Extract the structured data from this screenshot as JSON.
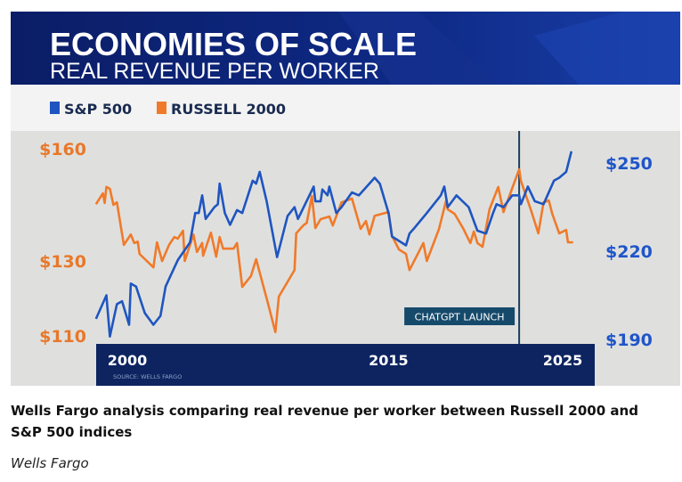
{
  "chart_data": {
    "type": "line",
    "title": "ECONOMIES OF SCALE",
    "subtitle": "REAL REVENUE PER WORKER",
    "source": "SOURCE: WELLS FARGO",
    "x_tick_labels": [
      "2000",
      "2015",
      "2025"
    ],
    "x_ticks": [
      2000,
      2015,
      2025
    ],
    "xlim": [
      1998.2,
      2025.6
    ],
    "left_axis": {
      "tick_labels": [
        "$160",
        "$130",
        "$110"
      ],
      "ticks": [
        160,
        130,
        110
      ],
      "color": "#e8782b",
      "series": "RUSSELL 2000"
    },
    "right_axis": {
      "tick_labels": [
        "$250",
        "$220",
        "$190"
      ],
      "ticks": [
        250,
        220,
        190
      ],
      "color": "#1f55c9",
      "series": "S&P 500"
    },
    "grid": false,
    "legend_position": "top-left",
    "annotation": {
      "label": "CHATGPT LAUNCH",
      "x": 2022.5
    },
    "series": [
      {
        "name": "S&P 500",
        "axis": "right",
        "color": "#1f55c0",
        "x": [
          1998.2,
          1998.8,
          1999.0,
          1999.4,
          1999.7,
          2000.1,
          2000.2,
          2000.5,
          2001.0,
          2001.5,
          2001.9,
          2002.2,
          2002.9,
          2003.6,
          2003.9,
          2004.1,
          2004.3,
          2004.5,
          2005.0,
          2005.2,
          2005.3,
          2005.6,
          2005.9,
          2006.3,
          2006.6,
          2007.2,
          2007.4,
          2007.6,
          2008.0,
          2008.6,
          2009.2,
          2009.6,
          2009.8,
          2010.7,
          2010.8,
          2011.1,
          2011.2,
          2011.5,
          2011.6,
          2012.0,
          2012.3,
          2012.9,
          2013.3,
          2014.2,
          2014.5,
          2015.0,
          2015.2,
          2016.0,
          2016.2,
          2016.5,
          2017.2,
          2018.0,
          2018.2,
          2018.4,
          2018.9,
          2019.6,
          2020.1,
          2020.6,
          2021.0,
          2021.2,
          2021.6,
          2022.1,
          2022.5,
          2022.6,
          2023.0,
          2023.4,
          2023.9,
          2024.5,
          2024.8,
          2025.2,
          2025.5
        ],
        "y": [
          197,
          205,
          191,
          202,
          203,
          195,
          209,
          208,
          199,
          195,
          198,
          208,
          217,
          223,
          233,
          233,
          239,
          231,
          235,
          236,
          243,
          233,
          229,
          234,
          233,
          244,
          243,
          247,
          237,
          218,
          232,
          235,
          231,
          242,
          237,
          237,
          241,
          239,
          242,
          233,
          235,
          240,
          239,
          245,
          243,
          233,
          225,
          222,
          226,
          228,
          233,
          239,
          242,
          235,
          239,
          235,
          227,
          226,
          233,
          236,
          235,
          239,
          239,
          236,
          242,
          237,
          236,
          244,
          245,
          247,
          254
        ]
      },
      {
        "name": "RUSSELL 2000",
        "axis": "left",
        "color": "#f07a2a",
        "x": [
          1998.2,
          1998.6,
          1998.7,
          1998.8,
          1999.0,
          1999.2,
          1999.4,
          1999.8,
          2000.2,
          2000.4,
          2000.6,
          2000.7,
          2001.5,
          2001.7,
          2002.0,
          2002.4,
          2002.7,
          2002.9,
          2003.2,
          2003.3,
          2003.8,
          2004.0,
          2004.3,
          2004.35,
          2004.8,
          2005.1,
          2005.3,
          2005.5,
          2006.1,
          2006.3,
          2006.6,
          2007.1,
          2007.4,
          2008.1,
          2008.5,
          2008.7,
          2009.6,
          2009.7,
          2010.1,
          2010.3,
          2010.6,
          2010.8,
          2011.1,
          2011.6,
          2011.8,
          2012.3,
          2012.9,
          2013.4,
          2013.7,
          2013.9,
          2014.2,
          2015.0,
          2015.2,
          2015.6,
          2016.0,
          2016.2,
          2017.0,
          2017.2,
          2017.9,
          2018.3,
          2018.4,
          2018.8,
          2019.3,
          2019.7,
          2019.9,
          2020.1,
          2020.4,
          2020.8,
          2021.3,
          2021.6,
          2022.5,
          2022.6,
          2023.2,
          2023.6,
          2023.9,
          2024.2,
          2024.4,
          2024.8,
          2025.2,
          2025.3,
          2025.6
        ],
        "y": [
          145.2,
          148.1,
          145.5,
          149.8,
          149.3,
          145.0,
          145.7,
          134.3,
          137.1,
          134.8,
          135.2,
          131.9,
          128.3,
          135.0,
          130.0,
          134.3,
          136.4,
          136.0,
          138.1,
          130.0,
          137.1,
          132.4,
          134.8,
          131.4,
          137.6,
          131.2,
          136.4,
          133.3,
          133.3,
          134.8,
          123.1,
          126.0,
          130.5,
          118.3,
          111.0,
          120.5,
          127.6,
          137.4,
          139.5,
          140.2,
          147.4,
          138.8,
          141.2,
          141.9,
          139.5,
          145.7,
          146.7,
          138.6,
          140.7,
          137.1,
          142.1,
          143.1,
          136.7,
          133.1,
          131.9,
          127.6,
          134.8,
          130.0,
          138.6,
          146.0,
          143.8,
          142.6,
          138.6,
          134.8,
          137.9,
          134.8,
          133.8,
          143.8,
          149.8,
          143.1,
          154.5,
          151.4,
          143.3,
          137.4,
          145.7,
          146.2,
          142.6,
          137.4,
          138.3,
          135.0,
          135.0
        ]
      }
    ]
  },
  "caption": "Wells Fargo analysis comparing real revenue per worker between Russell 2000 and S&P 500 indices",
  "credit": "Wells Fargo"
}
